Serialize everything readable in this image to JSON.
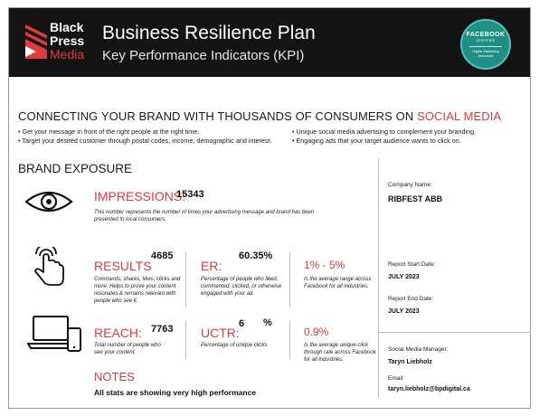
{
  "header": {
    "logo_line1": "Black",
    "logo_line2": "Press",
    "logo_line3": "Media",
    "title": "Business Resilience Plan",
    "subtitle": "Key Performance Indicators (KPI)",
    "badge": {
      "brand": "FACEBOOK",
      "certified": "CERTIFIED",
      "role_line1": "Digital Marketing",
      "role_line2": "Associate",
      "color": "#1f8f86"
    }
  },
  "connect": {
    "title_main": "CONNECTING YOUR BRAND WITH THOUSANDS OF CONSUMERS ON",
    "title_accent": "SOCIAL MEDIA",
    "bullets": [
      "• Get your message in front of the right people at the right time.",
      "• Target your desired customer through postal codes, income, demographic and interest.",
      "• Unique social media advertising to complement your branding.",
      "• Engaging ads that your target audience wants to click on."
    ]
  },
  "brand_exposure": {
    "title": "BRAND EXPOSURE",
    "impressions": {
      "label": "IMPRESSIONS:",
      "value": "15343",
      "desc": "This number represents the number of times your advertising message and brand has been presented to local consumers."
    },
    "results": {
      "label": "RESULTS",
      "value": "4685",
      "desc": "Comments, shares, likes, clicks and more. Helps to prove your content resonates & remains relevant with people who see it."
    },
    "er": {
      "label": "ER:",
      "value": "60.35",
      "unit": "%",
      "desc": "Percentage of people who liked, commented, clicked, or otherwise engaged with your ad."
    },
    "er_range": {
      "value": "1% - 5%",
      "desc": "Is the average range across Facebook for all industries."
    },
    "reach": {
      "label": "REACH:",
      "value": "7763",
      "desc": "Total number of people who see your content."
    },
    "uctr": {
      "label": "UCTR:",
      "value": "6",
      "unit": "%",
      "desc": "Percentage of unique clicks"
    },
    "uctr_avg": {
      "value": "0.9%",
      "desc": "Is the average unique click through rate across Facebook for all industries."
    }
  },
  "notes": {
    "title": "NOTES",
    "text": "All stats are showing very high performance"
  },
  "side": {
    "company_label": "Company Name:",
    "company_value": "RIBFEST ABB",
    "start_label": "Report Start Date:",
    "start_value": "JULY 2023",
    "end_label": "Report End Date:",
    "end_value": "JULY 2023",
    "manager_label": "Social Media Manager:",
    "manager_value": "Taryn Liebholz",
    "email_label": "Email:",
    "email_value": "taryn.liebholz@bpdigital.ca"
  },
  "colors": {
    "accent": "#e03a3e",
    "header_bg": "#141414"
  }
}
